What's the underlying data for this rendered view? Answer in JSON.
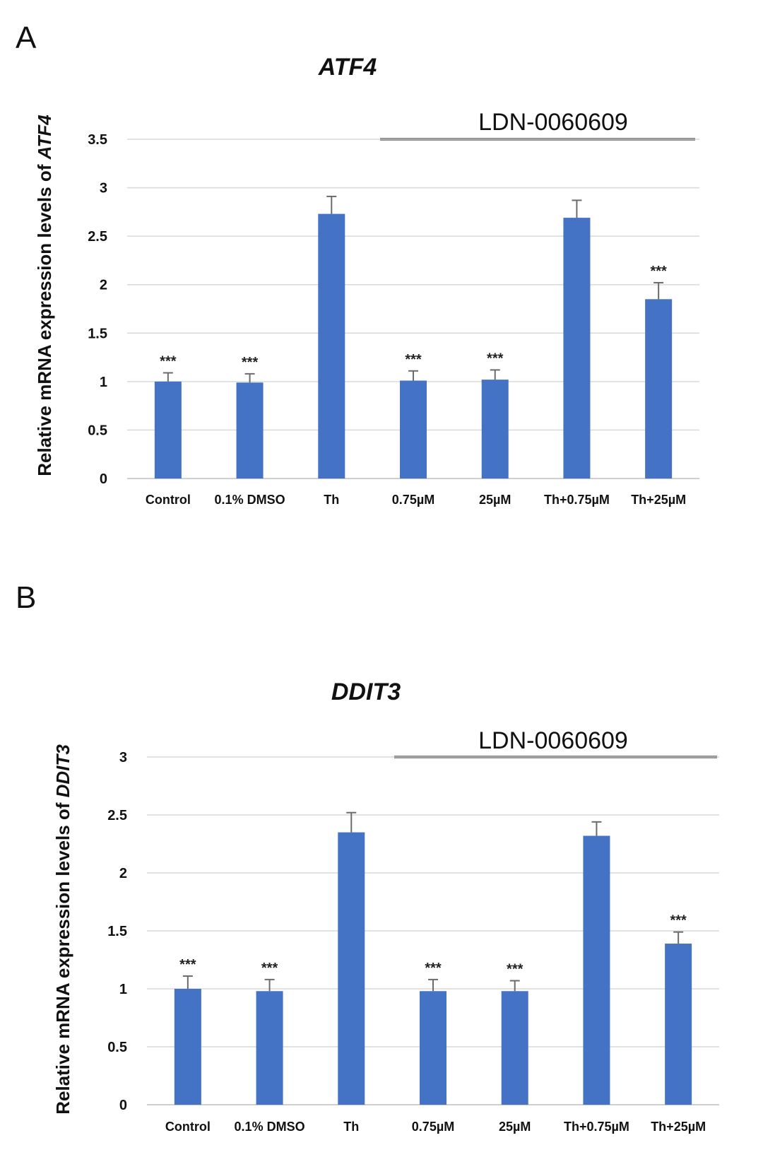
{
  "chart_data": [
    {
      "type": "bar",
      "panel": "A",
      "title": "ATF4",
      "ylabel_prefix": "Relative mRNA expression levels of ",
      "ylabel_gene": "ATF4",
      "xlabel": "",
      "ylim": [
        0,
        3.5
      ],
      "yticks": [
        "0",
        "0.5",
        "1",
        "1.5",
        "2",
        "2.5",
        "3",
        "3.5"
      ],
      "grid": true,
      "bar_color": "#4472C4",
      "categories": [
        "Control",
        "0.1% DMSO",
        "Th",
        "0.75µM",
        "25µM",
        "Th+0.75µM",
        "Th+25µM"
      ],
      "values": [
        1.0,
        0.99,
        2.73,
        1.01,
        1.02,
        2.69,
        1.85
      ],
      "errors": [
        0.09,
        0.09,
        0.18,
        0.1,
        0.1,
        0.18,
        0.17
      ],
      "significance": [
        "***",
        "***",
        "",
        "***",
        "***",
        "",
        "***"
      ],
      "treatment_label": "LDN-0060609",
      "treatment_span": [
        "0.75µM",
        "Th+25µM"
      ]
    },
    {
      "type": "bar",
      "panel": "B",
      "title": "DDIT3",
      "ylabel_prefix": "Relative mRNA expression levels of ",
      "ylabel_gene": "DDIT3",
      "xlabel": "",
      "ylim": [
        0,
        3
      ],
      "yticks": [
        "0",
        "0.5",
        "1",
        "1.5",
        "2",
        "2.5",
        "3"
      ],
      "grid": true,
      "bar_color": "#4472C4",
      "categories": [
        "Control",
        "0.1% DMSO",
        "Th",
        "0.75µM",
        "25µM",
        "Th+0.75µM",
        "Th+25µM"
      ],
      "values": [
        1.0,
        0.98,
        2.35,
        0.98,
        0.98,
        2.32,
        1.39
      ],
      "errors": [
        0.11,
        0.1,
        0.17,
        0.1,
        0.09,
        0.12,
        0.1
      ],
      "significance": [
        "***",
        "***",
        "",
        "***",
        "***",
        "",
        "***"
      ],
      "treatment_label": "LDN-0060609",
      "treatment_span": [
        "0.75µM",
        "Th+25µM"
      ]
    }
  ]
}
